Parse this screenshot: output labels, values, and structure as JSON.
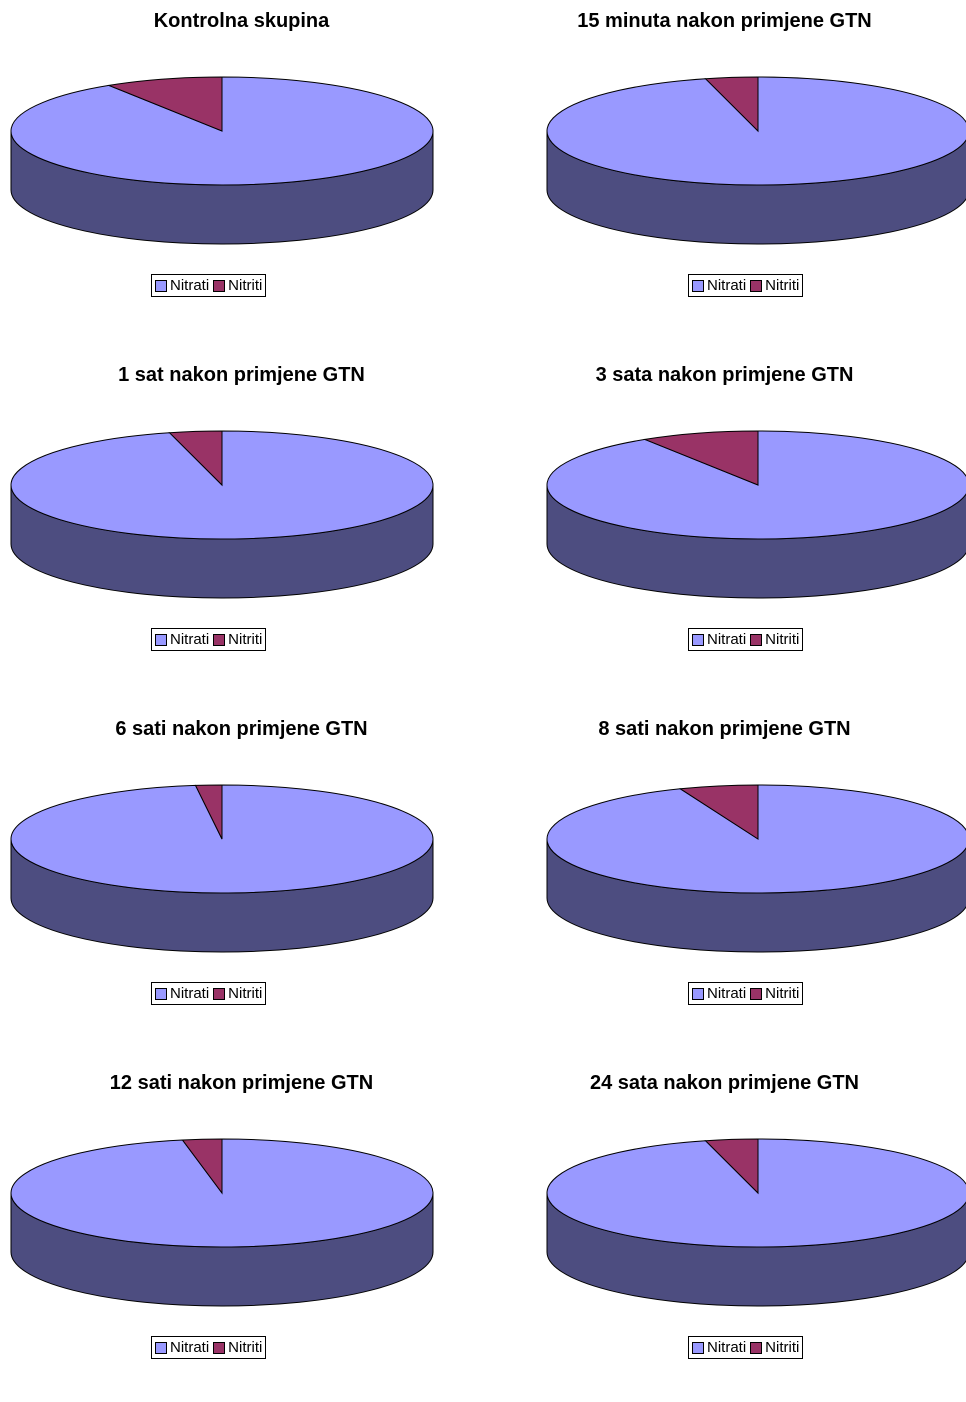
{
  "colors": {
    "nitrati_top": "#9999FF",
    "nitrati_side": "#4D4D80",
    "nitriti_top": "#993366",
    "nitriti_side": "#4D1A33",
    "outline": "#000000"
  },
  "legend": [
    "Nitrati",
    "Nitriti"
  ],
  "chart_data": [
    {
      "type": "pie",
      "title": "Kontrolna skupina",
      "series": [
        {
          "categories": [
            "Nitrati",
            "Nitriti"
          ],
          "values": [
            91,
            9
          ]
        }
      ]
    },
    {
      "type": "pie",
      "title": "15 minuta nakon primjene GTN",
      "series": [
        {
          "categories": [
            "Nitrati",
            "Nitriti"
          ],
          "values": [
            96,
            4
          ]
        }
      ]
    },
    {
      "type": "pie",
      "title": "1 sat nakon primjene GTN",
      "series": [
        {
          "categories": [
            "Nitrati",
            "Nitriti"
          ],
          "values": [
            96,
            4
          ]
        }
      ]
    },
    {
      "type": "pie",
      "title": "3 sata nakon primjene GTN",
      "series": [
        {
          "categories": [
            "Nitrati",
            "Nitriti"
          ],
          "values": [
            91,
            9
          ]
        }
      ]
    },
    {
      "type": "pie",
      "title": "6 sati nakon primjene GTN",
      "series": [
        {
          "categories": [
            "Nitrati",
            "Nitriti"
          ],
          "values": [
            98,
            2
          ]
        }
      ]
    },
    {
      "type": "pie",
      "title": "8 sati nakon primjene GTN",
      "series": [
        {
          "categories": [
            "Nitrati",
            "Nitriti"
          ],
          "values": [
            94,
            6
          ]
        }
      ]
    },
    {
      "type": "pie",
      "title": "12 sati nakon primjene GTN",
      "series": [
        {
          "categories": [
            "Nitrati",
            "Nitriti"
          ],
          "values": [
            97,
            3
          ]
        }
      ]
    },
    {
      "type": "pie",
      "title": "24 sata nakon primjene GTN",
      "series": [
        {
          "categories": [
            "Nitrati",
            "Nitriti"
          ],
          "values": [
            96,
            4
          ]
        }
      ]
    }
  ]
}
